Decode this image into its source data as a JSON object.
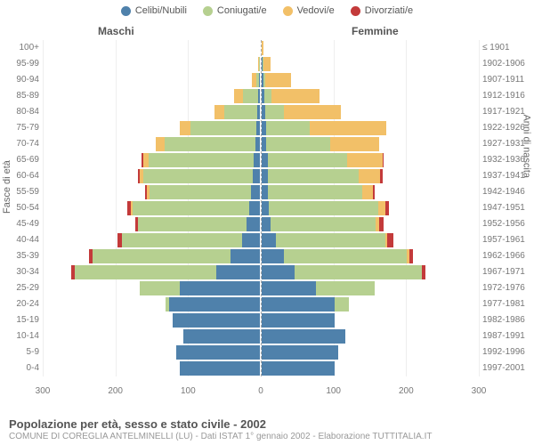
{
  "legend": [
    {
      "label": "Celibi/Nubili",
      "color": "#4f81ab"
    },
    {
      "label": "Coniugati/e",
      "color": "#b6d090"
    },
    {
      "label": "Vedovi/e",
      "color": "#f2c068"
    },
    {
      "label": "Divorziati/e",
      "color": "#c33a3a"
    }
  ],
  "header_left": "Maschi",
  "header_right": "Femmine",
  "y_title_left": "Fasce di età",
  "y_title_right": "Anni di nascita",
  "title": "Popolazione per età, sesso e stato civile - 2002",
  "subtitle": "COMUNE DI COREGLIA ANTELMINELLI (LU) - Dati ISTAT 1° gennaio 2002 - Elaborazione TUTTITALIA.IT",
  "x_ticks": [
    300,
    200,
    100,
    0,
    100,
    200,
    300
  ],
  "x_max": 300,
  "background_color": "#ffffff",
  "grid_color": "#eeeeee",
  "center_line_color": "#aaaaaa",
  "font_color": "#666666",
  "bar_gap_ratio": 0.12,
  "age_groups": [
    {
      "age": "0-4",
      "birth": "1997-2001",
      "m": [
        110,
        0,
        0,
        0
      ],
      "f": [
        100,
        0,
        0,
        0
      ]
    },
    {
      "age": "5-9",
      "birth": "1992-1996",
      "m": [
        115,
        0,
        0,
        0
      ],
      "f": [
        105,
        0,
        0,
        0
      ]
    },
    {
      "age": "10-14",
      "birth": "1987-1991",
      "m": [
        105,
        0,
        0,
        0
      ],
      "f": [
        115,
        0,
        0,
        0
      ]
    },
    {
      "age": "15-19",
      "birth": "1982-1986",
      "m": [
        120,
        0,
        0,
        0
      ],
      "f": [
        100,
        0,
        0,
        0
      ]
    },
    {
      "age": "20-24",
      "birth": "1977-1981",
      "m": [
        125,
        5,
        0,
        0
      ],
      "f": [
        100,
        20,
        0,
        0
      ]
    },
    {
      "age": "25-29",
      "birth": "1972-1976",
      "m": [
        110,
        55,
        0,
        0
      ],
      "f": [
        75,
        80,
        0,
        0
      ]
    },
    {
      "age": "30-34",
      "birth": "1967-1971",
      "m": [
        60,
        195,
        0,
        5
      ],
      "f": [
        45,
        175,
        0,
        5
      ]
    },
    {
      "age": "35-39",
      "birth": "1962-1966",
      "m": [
        40,
        190,
        0,
        5
      ],
      "f": [
        30,
        170,
        3,
        5
      ]
    },
    {
      "age": "40-44",
      "birth": "1957-1961",
      "m": [
        25,
        165,
        0,
        6
      ],
      "f": [
        20,
        150,
        3,
        8
      ]
    },
    {
      "age": "45-49",
      "birth": "1952-1956",
      "m": [
        18,
        150,
        0,
        4
      ],
      "f": [
        12,
        145,
        5,
        6
      ]
    },
    {
      "age": "50-54",
      "birth": "1947-1951",
      "m": [
        15,
        160,
        2,
        5
      ],
      "f": [
        10,
        150,
        10,
        5
      ]
    },
    {
      "age": "55-59",
      "birth": "1942-1946",
      "m": [
        12,
        140,
        3,
        3
      ],
      "f": [
        8,
        130,
        15,
        3
      ]
    },
    {
      "age": "60-64",
      "birth": "1937-1941",
      "m": [
        10,
        150,
        5,
        3
      ],
      "f": [
        8,
        125,
        30,
        3
      ]
    },
    {
      "age": "65-69",
      "birth": "1932-1936",
      "m": [
        8,
        145,
        8,
        2
      ],
      "f": [
        8,
        110,
        48,
        2
      ]
    },
    {
      "age": "70-74",
      "birth": "1927-1931",
      "m": [
        6,
        125,
        12,
        0
      ],
      "f": [
        6,
        88,
        68,
        0
      ]
    },
    {
      "age": "75-79",
      "birth": "1922-1926",
      "m": [
        5,
        90,
        15,
        0
      ],
      "f": [
        6,
        60,
        105,
        0
      ]
    },
    {
      "age": "80-84",
      "birth": "1917-1921",
      "m": [
        4,
        45,
        14,
        0
      ],
      "f": [
        5,
        26,
        78,
        0
      ]
    },
    {
      "age": "85-89",
      "birth": "1912-1916",
      "m": [
        3,
        20,
        12,
        0
      ],
      "f": [
        4,
        10,
        66,
        0
      ]
    },
    {
      "age": "90-94",
      "birth": "1907-1911",
      "m": [
        1,
        4,
        6,
        0
      ],
      "f": [
        2,
        3,
        35,
        0
      ]
    },
    {
      "age": "95-99",
      "birth": "1902-1906",
      "m": [
        0,
        1,
        2,
        0
      ],
      "f": [
        1,
        1,
        10,
        0
      ]
    },
    {
      "age": "100+",
      "birth": "≤ 1901",
      "m": [
        0,
        0,
        0,
        0
      ],
      "f": [
        0,
        0,
        3,
        0
      ]
    }
  ]
}
